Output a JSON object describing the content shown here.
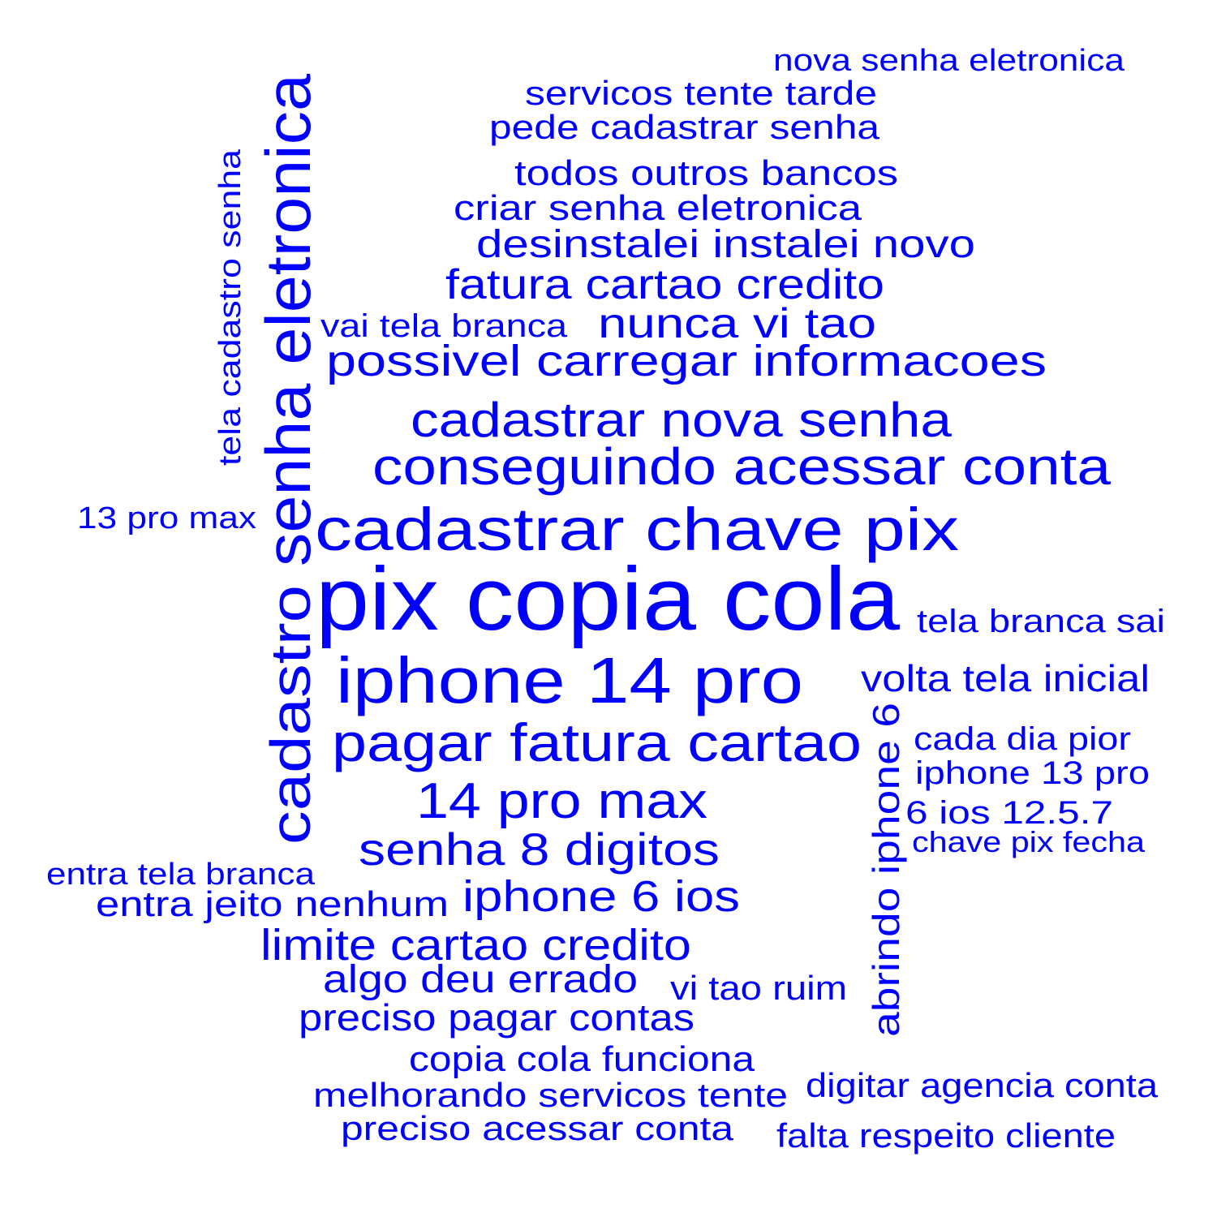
{
  "word_cloud": {
    "text_color": "#0000ff",
    "background_color": "#ffffff",
    "phrases": [
      {
        "id": "w01",
        "text": "nova senha eletronica"
      },
      {
        "id": "w02",
        "text": "servicos tente tarde"
      },
      {
        "id": "w03",
        "text": "pede cadastrar senha"
      },
      {
        "id": "w04",
        "text": "todos outros bancos"
      },
      {
        "id": "w05",
        "text": "criar senha eletronica"
      },
      {
        "id": "w06",
        "text": "desinstalei instalei novo"
      },
      {
        "id": "w07",
        "text": "fatura cartao credito"
      },
      {
        "id": "w08",
        "text": "vai tela branca"
      },
      {
        "id": "w09",
        "text": "nunca vi tao"
      },
      {
        "id": "w10",
        "text": "possivel carregar informacoes"
      },
      {
        "id": "w11",
        "text": "cadastrar nova senha"
      },
      {
        "id": "w12",
        "text": "conseguindo acessar conta"
      },
      {
        "id": "w13",
        "text": "13 pro max"
      },
      {
        "id": "w14",
        "text": "cadastrar chave pix"
      },
      {
        "id": "w15",
        "text": "pix copia cola"
      },
      {
        "id": "w16",
        "text": "tela branca sai"
      },
      {
        "id": "w17",
        "text": "iphone 14 pro"
      },
      {
        "id": "w18",
        "text": "volta tela inicial"
      },
      {
        "id": "w19",
        "text": "pagar fatura cartao"
      },
      {
        "id": "w20",
        "text": "cada dia pior"
      },
      {
        "id": "w21",
        "text": "iphone 13 pro"
      },
      {
        "id": "w22",
        "text": "14 pro max"
      },
      {
        "id": "w23",
        "text": "6 ios 12.5.7"
      },
      {
        "id": "w24",
        "text": "chave pix fecha"
      },
      {
        "id": "w25",
        "text": "senha 8 digitos"
      },
      {
        "id": "w26",
        "text": "entra tela branca"
      },
      {
        "id": "w27",
        "text": "entra jeito nenhum"
      },
      {
        "id": "w28",
        "text": "iphone 6 ios"
      },
      {
        "id": "w29",
        "text": "limite cartao credito"
      },
      {
        "id": "w30",
        "text": "algo deu errado"
      },
      {
        "id": "w31",
        "text": "vi tao ruim"
      },
      {
        "id": "w32",
        "text": "preciso pagar contas"
      },
      {
        "id": "w33",
        "text": "copia cola funciona"
      },
      {
        "id": "w34",
        "text": "melhorando servicos tente"
      },
      {
        "id": "w35",
        "text": "digitar agencia conta"
      },
      {
        "id": "w36",
        "text": "preciso acessar conta"
      },
      {
        "id": "w37",
        "text": "falta respeito cliente"
      },
      {
        "id": "w38",
        "text": "senha eletronica"
      },
      {
        "id": "w39",
        "text": "tela cadastro senha"
      },
      {
        "id": "w40",
        "text": "cadastro"
      },
      {
        "id": "w41",
        "text": "abrindo iphone 6"
      }
    ]
  }
}
